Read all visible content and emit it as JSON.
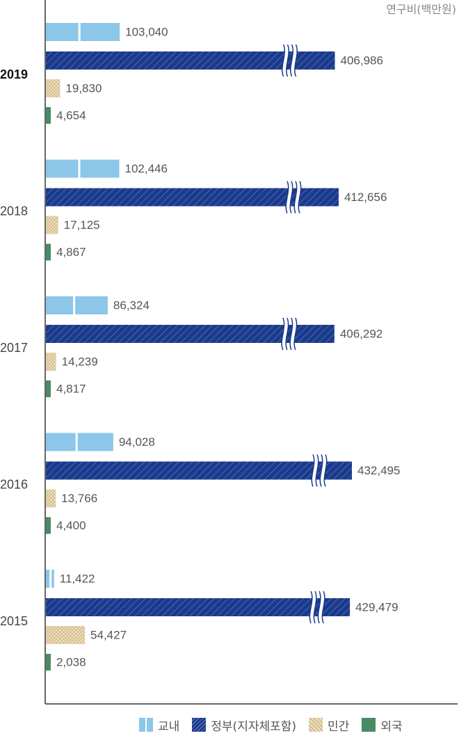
{
  "chart_data": {
    "type": "bar",
    "orientation": "horizontal",
    "unit_label": "연구비(백만원)",
    "categories": [
      "2019",
      "2018",
      "2017",
      "2016",
      "2015"
    ],
    "series": [
      {
        "name": "교내",
        "color": "#8cc6e8",
        "values": [
          103040,
          102446,
          86324,
          94028,
          11422
        ],
        "labels": [
          "103,040",
          "102,446",
          "86,324",
          "94,028",
          "11,422"
        ]
      },
      {
        "name": "정부(지자체포함)",
        "color": "#1a3a8c",
        "values": [
          406986,
          412656,
          406292,
          432495,
          429479
        ],
        "labels": [
          "406,986",
          "412,656",
          "406,292",
          "432,495",
          "429,479"
        ]
      },
      {
        "name": "민간",
        "color": "#d8c08e",
        "values": [
          19830,
          17125,
          14239,
          13766,
          54427
        ],
        "labels": [
          "19,830",
          "17,125",
          "14,239",
          "13,766",
          "54,427"
        ]
      },
      {
        "name": "외국",
        "color": "#4a8a64",
        "values": [
          4654,
          4867,
          4817,
          4400,
          2038
        ],
        "labels": [
          "4,654",
          "4,867",
          "4,817",
          "4,400",
          "2,038"
        ]
      }
    ],
    "axis_break": true,
    "highlight_category": "2019",
    "legend_position": "bottom-right",
    "grid": false
  }
}
